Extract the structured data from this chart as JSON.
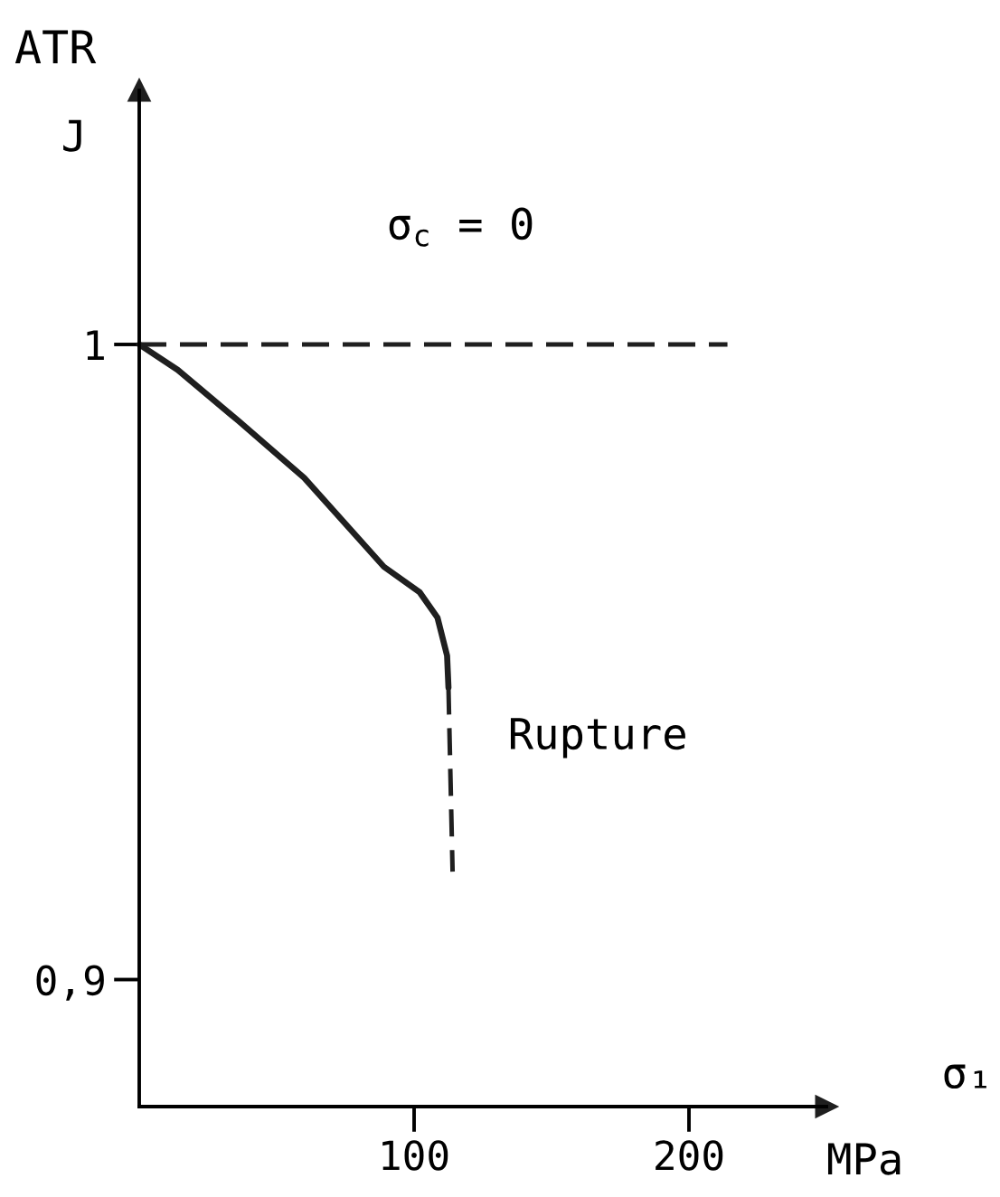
{
  "chart_data": {
    "type": "line",
    "title": "ATR",
    "xlabel": "σ₁",
    "ylabel": "J",
    "annotations": [
      "σ$_{c}$ = 0",
      "MPa",
      {
        "text": "Rupture",
        "x": 114,
        "y": 0.935
      }
    ],
    "series": [
      {
        "color": "#1f1f1f",
        "line_style": "solid",
        "x": [
          0,
          14,
          36,
          60,
          89,
          102,
          108.5,
          112,
          112.5
        ],
        "values": [
          1.0,
          0.996,
          0.988,
          0.979,
          0.965,
          0.961,
          0.957,
          0.951,
          0.946
        ]
      },
      {
        "color": "#1f1f1f",
        "line_style": "dashed",
        "x": [
          112.5,
          114
        ],
        "values": [
          0.946,
          0.917
        ]
      },
      {
        "color": "#1f1f1f",
        "line_style": "dashed",
        "x": [
          0,
          214
        ],
        "values": [
          1.0,
          1.0
        ]
      }
    ],
    "xlim": [
      0,
      250
    ],
    "ylim": [
      0.88,
      1.04
    ],
    "xticks": [
      100,
      200
    ],
    "yticks": [
      {
        "value": 0.9,
        "label": "0,9"
      },
      1
    ]
  }
}
